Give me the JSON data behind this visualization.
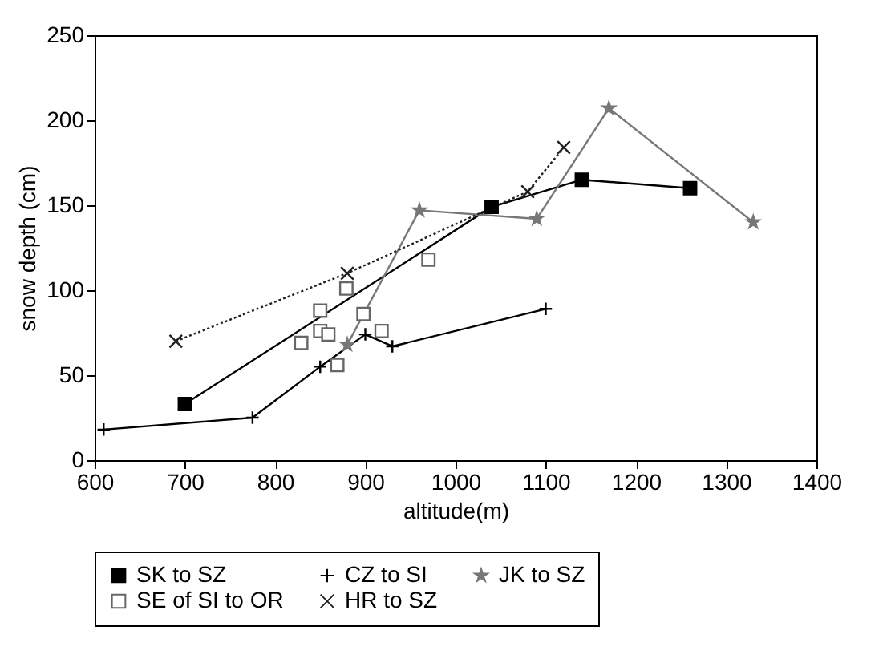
{
  "chart_data": {
    "type": "line",
    "xlabel": "altitude(m)",
    "ylabel": "snow depth (cm)",
    "xlim": [
      600,
      1400
    ],
    "xticks": [
      600,
      700,
      800,
      900,
      1000,
      1100,
      1200,
      1300,
      1400
    ],
    "ylim": [
      0,
      250
    ],
    "yticks": [
      0,
      50,
      100,
      150,
      200,
      250
    ],
    "grid": false,
    "legend": "bottom",
    "series": [
      {
        "name": "SK to SZ",
        "color": "#000000",
        "marker": "square",
        "line_style": "solid",
        "x": [
          700,
          1040,
          1140,
          1260
        ],
        "values": [
          33,
          149,
          165,
          160
        ]
      },
      {
        "name": "CZ to SI",
        "color": "#000000",
        "marker": "cross",
        "line_style": "solid",
        "x": [
          610,
          775,
          850,
          900,
          930,
          1100
        ],
        "values": [
          18,
          25,
          55,
          74,
          67,
          89
        ]
      },
      {
        "name": "JK to SZ",
        "color": "#777777",
        "marker": "star",
        "line_style": "solid",
        "x": [
          880,
          960,
          1090,
          1170,
          1330
        ],
        "values": [
          68,
          147,
          142,
          207,
          140
        ]
      },
      {
        "name": "SE of SI to OR",
        "type": "scatter",
        "color": "#666666",
        "marker": "square",
        "x": [
          829,
          850,
          850,
          859,
          869,
          879,
          898,
          918,
          970
        ],
        "values": [
          69,
          88,
          76,
          74,
          56,
          101,
          86,
          76,
          118
        ]
      },
      {
        "name": "HR to SZ",
        "color": "#222222",
        "marker": "x",
        "line_style": "dotted",
        "x": [
          690,
          880,
          1080,
          1120
        ],
        "values": [
          70,
          110,
          158,
          184
        ]
      }
    ]
  }
}
